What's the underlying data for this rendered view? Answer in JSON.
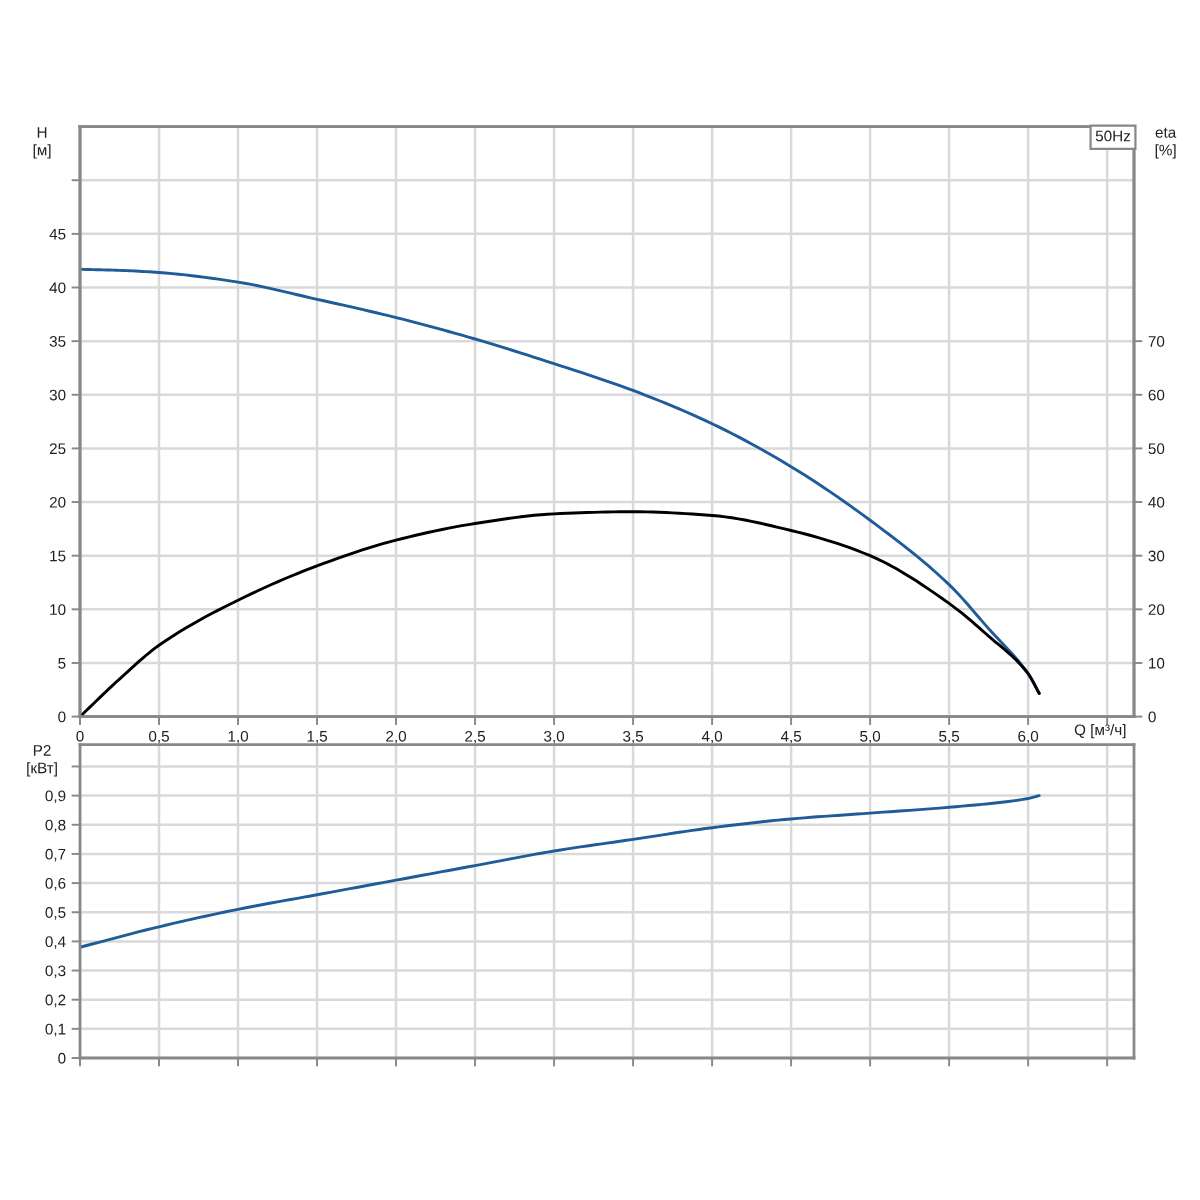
{
  "chart_data": [
    {
      "type": "line",
      "xlabel": "Q [м³/ч]",
      "ylabel": "H\n[м]",
      "y2label": "eta\n[%]",
      "annotations": [
        "50Hz"
      ],
      "xlim": [
        0,
        6.67
      ],
      "xticks": [
        0,
        {
          "value": 0.5,
          "label": "0,5"
        },
        {
          "value": 1.0,
          "label": "1,0"
        },
        {
          "value": 1.5,
          "label": "1,5"
        },
        {
          "value": 2.0,
          "label": "2,0"
        },
        {
          "value": 2.5,
          "label": "2,5"
        },
        {
          "value": 3.0,
          "label": "3,0"
        },
        {
          "value": 3.5,
          "label": "3,5"
        },
        {
          "value": 4.0,
          "label": "4,0"
        },
        {
          "value": 4.5,
          "label": "4,5"
        },
        {
          "value": 5.0,
          "label": "5,0"
        },
        {
          "value": 5.5,
          "label": "5,5"
        },
        {
          "value": 6.0,
          "label": "6,0"
        },
        {
          "value": 6.5,
          "label": null
        }
      ],
      "ylim": [
        0,
        55
      ],
      "yticks": [
        0,
        5,
        10,
        15,
        20,
        25,
        30,
        35,
        40,
        45,
        {
          "value": 50,
          "label": null
        }
      ],
      "y2lim": [
        0,
        110
      ],
      "y2ticks": [
        0,
        10,
        20,
        30,
        40,
        50,
        60,
        70
      ],
      "grid": true,
      "series": [
        {
          "color": "#1f5c99",
          "x": [
            0,
            0.25,
            0.5,
            1.0,
            1.5,
            2.0,
            2.5,
            3.0,
            3.5,
            4.0,
            4.5,
            5.0,
            5.5,
            5.75,
            6.0,
            6.07
          ],
          "values": [
            41.7,
            41.6,
            41.4,
            40.5,
            38.9,
            37.2,
            35.2,
            32.9,
            30.4,
            27.3,
            23.3,
            18.3,
            12.3,
            8.2,
            4.0,
            2.2
          ]
        },
        {
          "color": "#000000",
          "axis": "y2",
          "x": [
            0,
            0.25,
            0.5,
            1.0,
            1.5,
            2.0,
            2.5,
            3.0,
            3.5,
            4.0,
            4.5,
            5.0,
            5.5,
            5.75,
            6.0,
            6.07
          ],
          "values": [
            0,
            7.0,
            13.3,
            21.7,
            28.1,
            32.9,
            36.0,
            37.8,
            38.2,
            37.5,
            34.7,
            30.0,
            21.1,
            15.0,
            8.0,
            4.3
          ]
        }
      ]
    },
    {
      "type": "line",
      "ylabel": "P2\n[кВт]",
      "xlim": [
        0,
        6.67
      ],
      "xticks": [
        0,
        0.5,
        1.0,
        1.5,
        2.0,
        2.5,
        3.0,
        3.5,
        4.0,
        4.5,
        5.0,
        5.5,
        6.0,
        6.5
      ],
      "ylim": [
        0,
        1.075
      ],
      "yticks": [
        0,
        {
          "value": 0.1,
          "label": "0,1"
        },
        {
          "value": 0.2,
          "label": "0,2"
        },
        {
          "value": 0.3,
          "label": "0,3"
        },
        {
          "value": 0.4,
          "label": "0,4"
        },
        {
          "value": 0.5,
          "label": "0,5"
        },
        {
          "value": 0.6,
          "label": "0,6"
        },
        {
          "value": 0.7,
          "label": "0,7"
        },
        {
          "value": 0.8,
          "label": "0,8"
        },
        {
          "value": 0.9,
          "label": "0,9"
        },
        {
          "value": 1.0,
          "label": null
        }
      ],
      "tick_labels": "y",
      "grid": true,
      "series": [
        {
          "color": "#1f5c99",
          "x": [
            0,
            0.5,
            1.0,
            1.5,
            2.0,
            2.5,
            3.0,
            3.5,
            4.0,
            4.5,
            5.0,
            5.5,
            6.0,
            6.07
          ],
          "values": [
            0.38,
            0.45,
            0.51,
            0.56,
            0.61,
            0.66,
            0.71,
            0.75,
            0.79,
            0.82,
            0.84,
            0.86,
            0.89,
            0.9
          ]
        }
      ]
    }
  ]
}
